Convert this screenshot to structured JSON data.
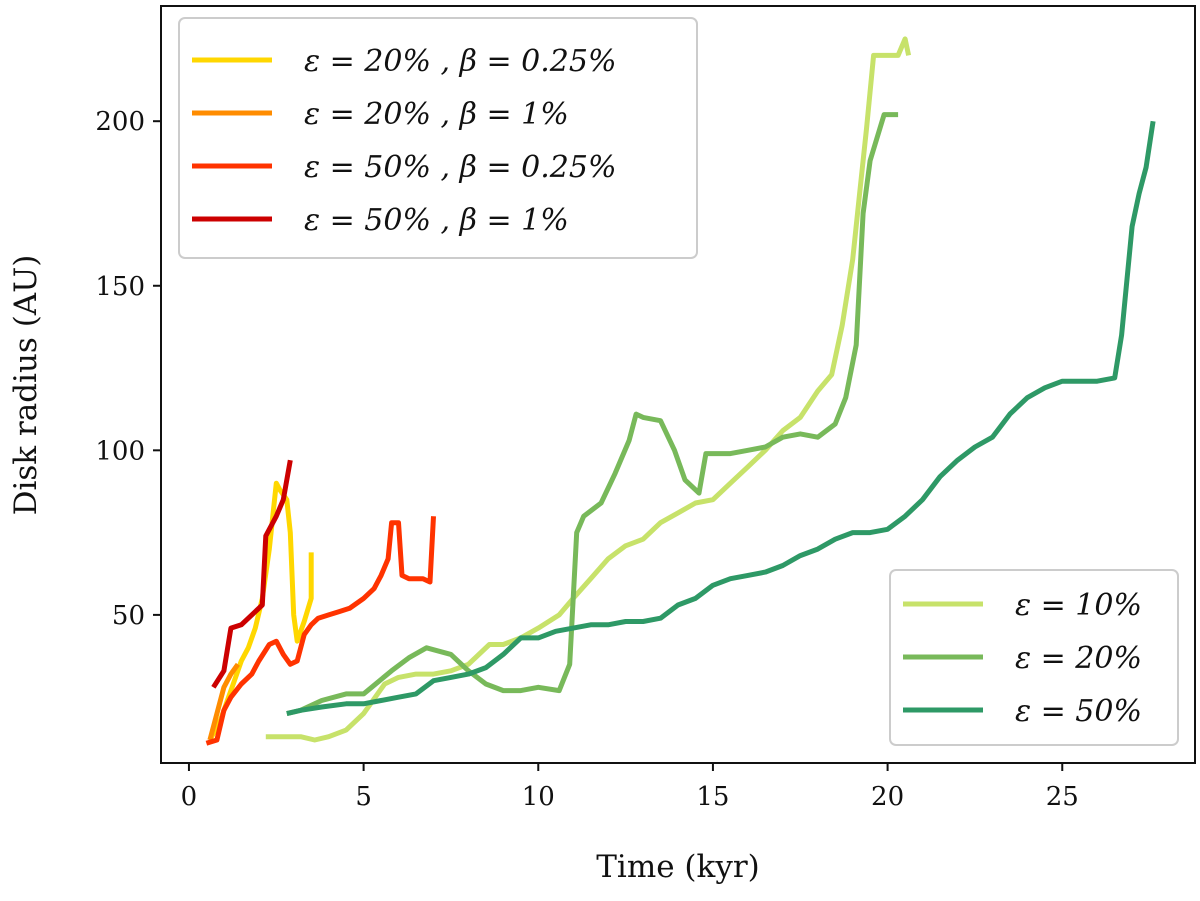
{
  "chart_data": {
    "type": "line",
    "title": "",
    "xlabel": "Time (kyr)",
    "ylabel": "Disk radius (AU)",
    "xlim": [
      -0.8,
      28.8
    ],
    "ylim": [
      5,
      235
    ],
    "xticks": [
      0,
      5,
      10,
      15,
      20,
      25
    ],
    "yticks": [
      50,
      100,
      150,
      200
    ],
    "grid": false,
    "legends": [
      {
        "placement": "top-left",
        "entries": [
          "ε = 20% ,   β = 0.25%",
          "ε = 20% ,   β = 1%",
          "ε = 50% ,   β = 0.25%",
          "ε = 50% ,   β = 1%"
        ]
      },
      {
        "placement": "bottom-right",
        "entries": [
          "ε = 10%",
          "ε = 20%",
          "ε = 50%"
        ]
      }
    ],
    "series": [
      {
        "name": "ε = 20% ,   β = 0.25%",
        "color": "#ffd700",
        "x": [
          0.6,
          0.9,
          1.1,
          1.3,
          1.5,
          1.7,
          1.9,
          2.1,
          2.3,
          2.5,
          2.6,
          2.8,
          2.9,
          3.0,
          3.1,
          3.2,
          3.3,
          3.5,
          3.5
        ],
        "y": [
          12,
          18,
          24,
          30,
          36,
          40,
          46,
          55,
          70,
          90,
          88,
          85,
          75,
          50,
          42,
          45,
          48,
          55,
          69
        ]
      },
      {
        "name": "ε = 20% ,   β = 1%",
        "color": "#ff8c00",
        "x": [
          0.6,
          0.8,
          1.0,
          1.2,
          1.4
        ],
        "y": [
          12,
          20,
          28,
          32,
          35
        ]
      },
      {
        "name": "ε = 50% ,   β = 0.25%",
        "color": "#ff3300",
        "x": [
          0.5,
          0.8,
          1.0,
          1.2,
          1.5,
          1.8,
          2.0,
          2.3,
          2.5,
          2.7,
          2.9,
          3.1,
          3.3,
          3.5,
          3.7,
          4.0,
          4.3,
          4.6,
          5.0,
          5.3,
          5.5,
          5.7,
          5.8,
          6.0,
          6.1,
          6.3,
          6.5,
          6.7,
          6.9,
          7.0
        ],
        "y": [
          11,
          12,
          21,
          25,
          29,
          32,
          36,
          41,
          42,
          38,
          35,
          36,
          44,
          47,
          49,
          50,
          51,
          52,
          55,
          58,
          62,
          67,
          78,
          78,
          62,
          61,
          61,
          61,
          60,
          80
        ]
      },
      {
        "name": "ε = 50% ,   β = 1%",
        "color": "#cc0000",
        "x": [
          0.7,
          1.0,
          1.2,
          1.5,
          1.8,
          2.1,
          2.2,
          2.5,
          2.7,
          2.9
        ],
        "y": [
          28,
          33,
          46,
          47,
          50,
          53,
          74,
          80,
          85,
          97
        ]
      },
      {
        "name": "ε = 10%",
        "color": "#c7e26a",
        "x": [
          2.2,
          2.8,
          3.2,
          3.6,
          4.0,
          4.5,
          5.0,
          5.6,
          6.0,
          6.5,
          7.0,
          7.5,
          8.0,
          8.6,
          9.0,
          9.5,
          10.0,
          10.6,
          11.0,
          11.5,
          12.0,
          12.5,
          13.0,
          13.5,
          14.0,
          14.5,
          15.0,
          15.5,
          16.0,
          16.5,
          17.0,
          17.5,
          18.0,
          18.4,
          18.7,
          19.0,
          19.2,
          19.4,
          19.6,
          20.0,
          20.3,
          20.5,
          20.6
        ],
        "y": [
          13,
          13,
          13,
          12,
          13,
          15,
          20,
          29,
          31,
          32,
          32,
          33,
          35,
          41,
          41,
          43,
          46,
          50,
          55,
          61,
          67,
          71,
          73,
          78,
          81,
          84,
          85,
          90,
          95,
          100,
          106,
          110,
          118,
          123,
          138,
          158,
          178,
          198,
          220,
          220,
          220,
          225,
          220
        ]
      },
      {
        "name": "ε = 20%",
        "color": "#78b95a",
        "x": [
          2.8,
          3.2,
          3.8,
          4.5,
          5.0,
          5.8,
          6.3,
          6.8,
          7.5,
          8.0,
          8.5,
          9.0,
          9.5,
          10.0,
          10.6,
          10.9,
          11.1,
          11.3,
          11.8,
          12.2,
          12.6,
          12.8,
          13.0,
          13.5,
          13.9,
          14.2,
          14.6,
          14.8,
          15.0,
          15.5,
          16.0,
          16.5,
          17.0,
          17.5,
          18.0,
          18.5,
          18.8,
          19.1,
          19.3,
          19.5,
          19.9,
          20.3
        ],
        "y": [
          20,
          21,
          24,
          26,
          26,
          33,
          37,
          40,
          38,
          33,
          29,
          27,
          27,
          28,
          27,
          35,
          75,
          80,
          84,
          93,
          103,
          111,
          110,
          109,
          100,
          91,
          87,
          99,
          99,
          99,
          100,
          101,
          104,
          105,
          104,
          108,
          116,
          132,
          172,
          188,
          202,
          202
        ]
      },
      {
        "name": "ε = 50%",
        "color": "#2e9966",
        "x": [
          2.8,
          3.2,
          3.8,
          4.5,
          5.0,
          5.5,
          6.0,
          6.5,
          7.0,
          7.5,
          8.0,
          8.5,
          9.0,
          9.5,
          10.0,
          10.5,
          11.0,
          11.5,
          12.0,
          12.5,
          13.0,
          13.5,
          14.0,
          14.5,
          15.0,
          15.5,
          16.0,
          16.5,
          17.0,
          17.5,
          18.0,
          18.5,
          19.0,
          19.5,
          20.0,
          20.5,
          21.0,
          21.5,
          22.0,
          22.5,
          23.0,
          23.5,
          24.0,
          24.5,
          25.0,
          25.5,
          26.0,
          26.5,
          26.7,
          27.0,
          27.2,
          27.4,
          27.6
        ],
        "y": [
          20,
          21,
          22,
          23,
          23,
          24,
          25,
          26,
          30,
          31,
          32,
          34,
          38,
          43,
          43,
          45,
          46,
          47,
          47,
          48,
          48,
          49,
          53,
          55,
          59,
          61,
          62,
          63,
          65,
          68,
          70,
          73,
          75,
          75,
          76,
          80,
          85,
          92,
          97,
          101,
          104,
          111,
          116,
          119,
          121,
          121,
          121,
          122,
          135,
          168,
          178,
          186,
          200
        ]
      }
    ]
  }
}
